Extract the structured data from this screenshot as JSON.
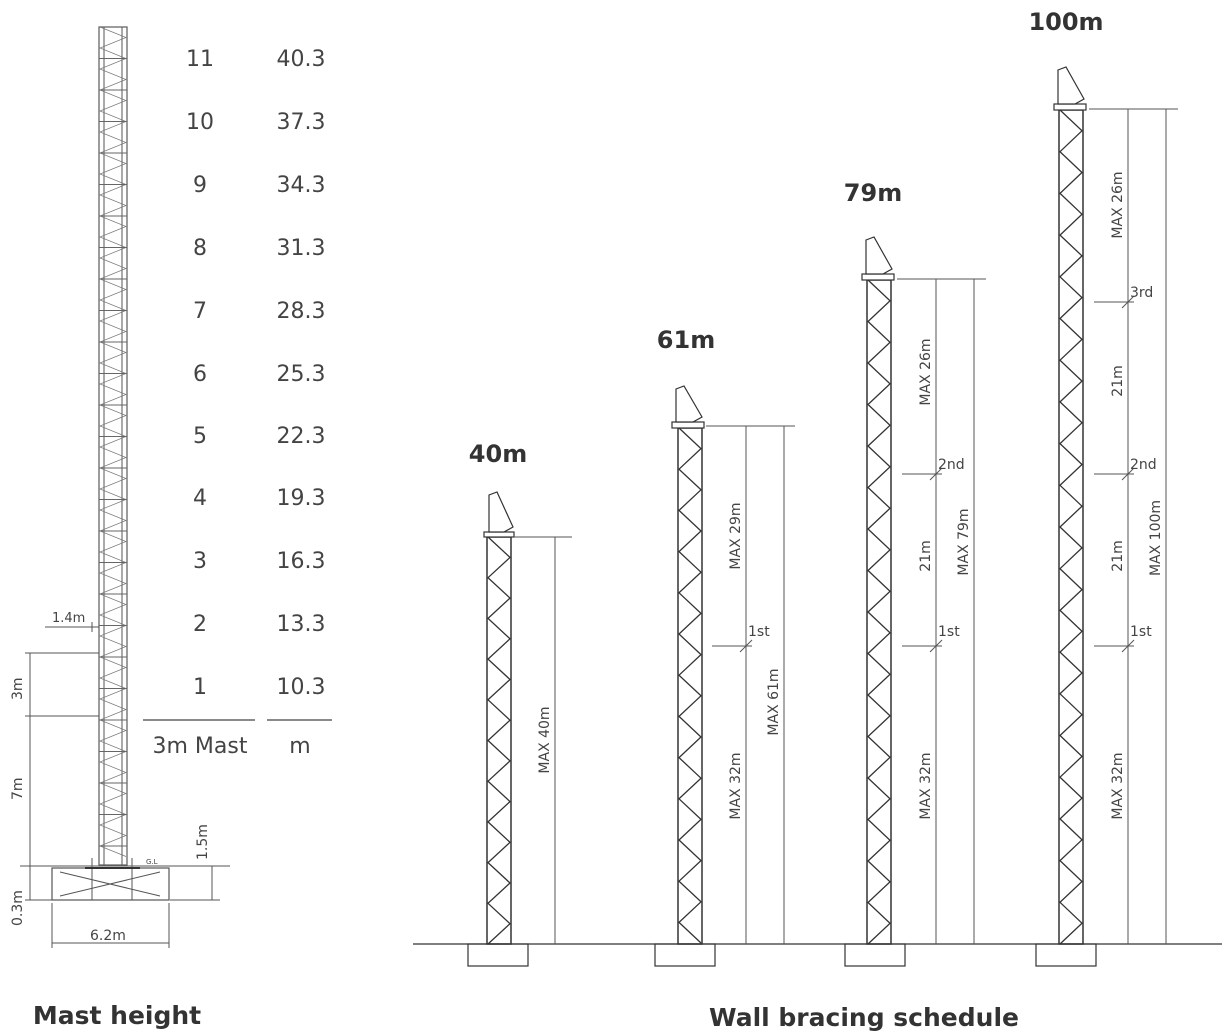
{
  "mast_height": {
    "title": "Mast height",
    "table": {
      "rows": [
        {
          "mast": "11",
          "height": "40.3"
        },
        {
          "mast": "10",
          "height": "37.3"
        },
        {
          "mast": "9",
          "height": "34.3"
        },
        {
          "mast": "8",
          "height": "31.3"
        },
        {
          "mast": "7",
          "height": "28.3"
        },
        {
          "mast": "6",
          "height": "25.3"
        },
        {
          "mast": "5",
          "height": "22.3"
        },
        {
          "mast": "4",
          "height": "19.3"
        },
        {
          "mast": "3",
          "height": "16.3"
        },
        {
          "mast": "2",
          "height": "13.3"
        },
        {
          "mast": "1",
          "height": "10.3"
        }
      ],
      "col_mast_header": "3m Mast",
      "col_height_header": "m"
    },
    "dims": {
      "width_top": "1.4m",
      "section": "3m",
      "base_height": "7m",
      "foundation_depth": "0.3m",
      "above_ground": "1.5m",
      "foundation_width": "6.2m",
      "ground_label": "G.L"
    }
  },
  "wall_bracing": {
    "title": "Wall bracing schedule",
    "towers": [
      {
        "title": "40m",
        "labels": {
          "max_total": "MAX 40m"
        }
      },
      {
        "title": "61m",
        "labels": {
          "max_top": "MAX 29m",
          "max_bottom": "MAX 32m",
          "max_total": "MAX 61m",
          "tie_1": "1st"
        }
      },
      {
        "title": "79m",
        "labels": {
          "max_top": "MAX 26m",
          "mid": "21m",
          "max_bottom": "MAX 32m",
          "max_total": "MAX 79m",
          "tie_1": "1st",
          "tie_2": "2nd"
        }
      },
      {
        "title": "100m",
        "labels": {
          "max_top": "MAX 26m",
          "mid_upper": "21m",
          "mid_lower": "21m",
          "max_bottom": "MAX 32m",
          "max_total": "MAX 100m",
          "tie_1": "1st",
          "tie_2": "2nd",
          "tie_3": "3rd"
        }
      }
    ]
  }
}
